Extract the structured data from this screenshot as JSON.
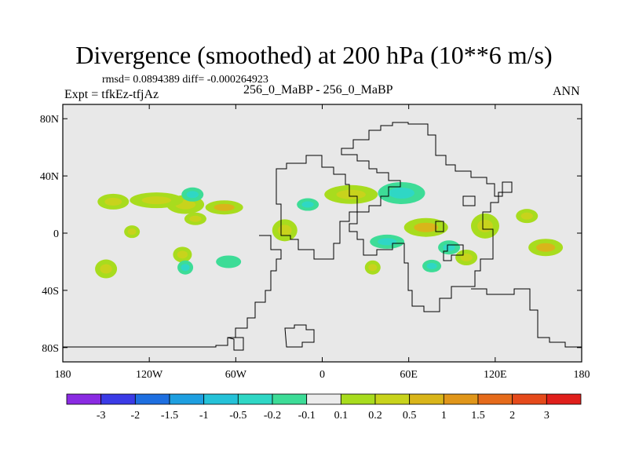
{
  "header": {
    "title": "Divergence (smoothed) at 200 hPa (10**6 m/s)",
    "stats": "rmsd= 0.0894389 diff= -0.000264923",
    "expt": "Expt = tfkEz-tfjAz",
    "center": "256_0_MaBP - 256_0_MaBP",
    "season": "ANN"
  },
  "map": {
    "background_color": "#e8e8e8",
    "outline_color": "#000000",
    "lon_ticks": [
      "180",
      "120W",
      "60W",
      "0",
      "60E",
      "120E",
      "180"
    ],
    "lat_ticks": [
      "80N",
      "40N",
      "0",
      "40S",
      "80S"
    ]
  },
  "colorbar": {
    "colors": [
      "#8a2be2",
      "#3b3be6",
      "#1e6fe0",
      "#1e9fe0",
      "#25c2d8",
      "#2fd7c5",
      "#3ddc97",
      "#ececec",
      "#a8dc1e",
      "#c8d31c",
      "#d9b51a",
      "#e0961a",
      "#e56b1b",
      "#e54a1b",
      "#e01f1b"
    ],
    "labels": [
      "-3",
      "-2",
      "-1.5",
      "-1",
      "-0.5",
      "-0.2",
      "-0.1",
      "0.1",
      "0.2",
      "0.5",
      "1",
      "1.5",
      "2",
      "3"
    ]
  },
  "chart_data": {
    "type": "heatmap",
    "title": "Divergence (smoothed) at 200 hPa (10**6 m/s)",
    "xlabel": "",
    "ylabel": "",
    "xlim": [
      -180,
      180
    ],
    "ylim": [
      -90,
      90
    ],
    "levels": [
      -3,
      -2,
      -1.5,
      -1,
      -0.5,
      -0.2,
      -0.1,
      0.1,
      0.2,
      0.5,
      1,
      1.5,
      2,
      3
    ],
    "blobs": [
      {
        "lon": 20,
        "lat": 27,
        "value": 0.3
      },
      {
        "lon": 55,
        "lat": 28,
        "value": -0.4
      },
      {
        "lon": 72,
        "lat": 4,
        "value": 0.5
      },
      {
        "lon": -26,
        "lat": 2,
        "value": 0.4
      },
      {
        "lon": -95,
        "lat": 20,
        "value": 0.3
      },
      {
        "lon": -88,
        "lat": 10,
        "value": 0.2
      },
      {
        "lon": -90,
        "lat": 27,
        "value": -0.3
      },
      {
        "lon": -68,
        "lat": 18,
        "value": 0.5
      },
      {
        "lon": -10,
        "lat": 20,
        "value": -0.3
      },
      {
        "lon": 142,
        "lat": 12,
        "value": 0.2
      },
      {
        "lon": 155,
        "lat": -10,
        "value": 0.6
      },
      {
        "lon": -145,
        "lat": 22,
        "value": 0.3
      },
      {
        "lon": -115,
        "lat": 23,
        "value": 0.3
      },
      {
        "lon": -150,
        "lat": -25,
        "value": 0.3
      },
      {
        "lon": -97,
        "lat": -15,
        "value": 0.3
      },
      {
        "lon": -95,
        "lat": -24,
        "value": -0.3
      },
      {
        "lon": -65,
        "lat": -20,
        "value": -0.2
      },
      {
        "lon": -132,
        "lat": 1,
        "value": 0.2
      },
      {
        "lon": 45,
        "lat": -6,
        "value": -0.3
      },
      {
        "lon": 35,
        "lat": -24,
        "value": 0.2
      },
      {
        "lon": 76,
        "lat": -23,
        "value": -0.3
      },
      {
        "lon": 88,
        "lat": -10,
        "value": -0.4
      },
      {
        "lon": 100,
        "lat": -17,
        "value": 0.4
      },
      {
        "lon": 113,
        "lat": 5,
        "value": 0.3
      }
    ]
  }
}
